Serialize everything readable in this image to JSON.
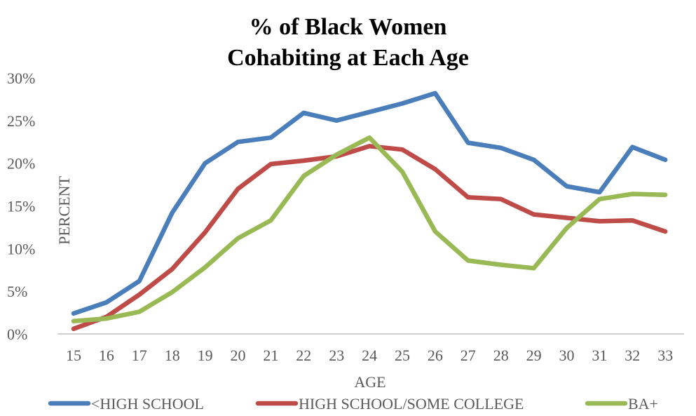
{
  "chart_data": {
    "type": "line",
    "title_lines": [
      "% of Black Women",
      "Cohabiting at Each Age"
    ],
    "xlabel": "AGE",
    "ylabel": "PERCENT",
    "x": [
      "15",
      "16",
      "17",
      "18",
      "19",
      "20",
      "21",
      "22",
      "23",
      "24",
      "25",
      "26",
      "27",
      "28",
      "29",
      "30",
      "31",
      "32",
      "33"
    ],
    "ylim": [
      0,
      30
    ],
    "yticks": [
      0,
      5,
      10,
      15,
      20,
      25,
      30
    ],
    "ytick_labels": [
      "0%",
      "5%",
      "10%",
      "15%",
      "20%",
      "25%",
      "30%"
    ],
    "grid": false,
    "legend_position": "bottom",
    "series": [
      {
        "name": "<HIGH SCHOOL",
        "color": "#4a7ebb",
        "values": [
          2.4,
          3.7,
          6.2,
          14.2,
          20.0,
          22.5,
          23.0,
          25.9,
          25.0,
          26.0,
          27.0,
          28.2,
          22.4,
          21.8,
          20.4,
          17.3,
          16.6,
          21.9,
          20.4
        ]
      },
      {
        "name": "HIGH SCHOOL/SOME COLLEGE",
        "color": "#be4b48",
        "values": [
          0.6,
          2.0,
          4.6,
          7.6,
          11.9,
          17.0,
          19.9,
          20.3,
          20.8,
          22.0,
          21.6,
          19.3,
          16.0,
          15.8,
          14.0,
          13.6,
          13.2,
          13.3,
          12.0
        ]
      },
      {
        "name": "BA+",
        "color": "#98b954",
        "values": [
          1.5,
          1.8,
          2.6,
          4.9,
          7.8,
          11.2,
          13.3,
          18.5,
          21.0,
          23.0,
          19.0,
          12.0,
          8.6,
          8.1,
          7.7,
          12.4,
          15.8,
          16.4,
          16.3
        ]
      }
    ]
  }
}
